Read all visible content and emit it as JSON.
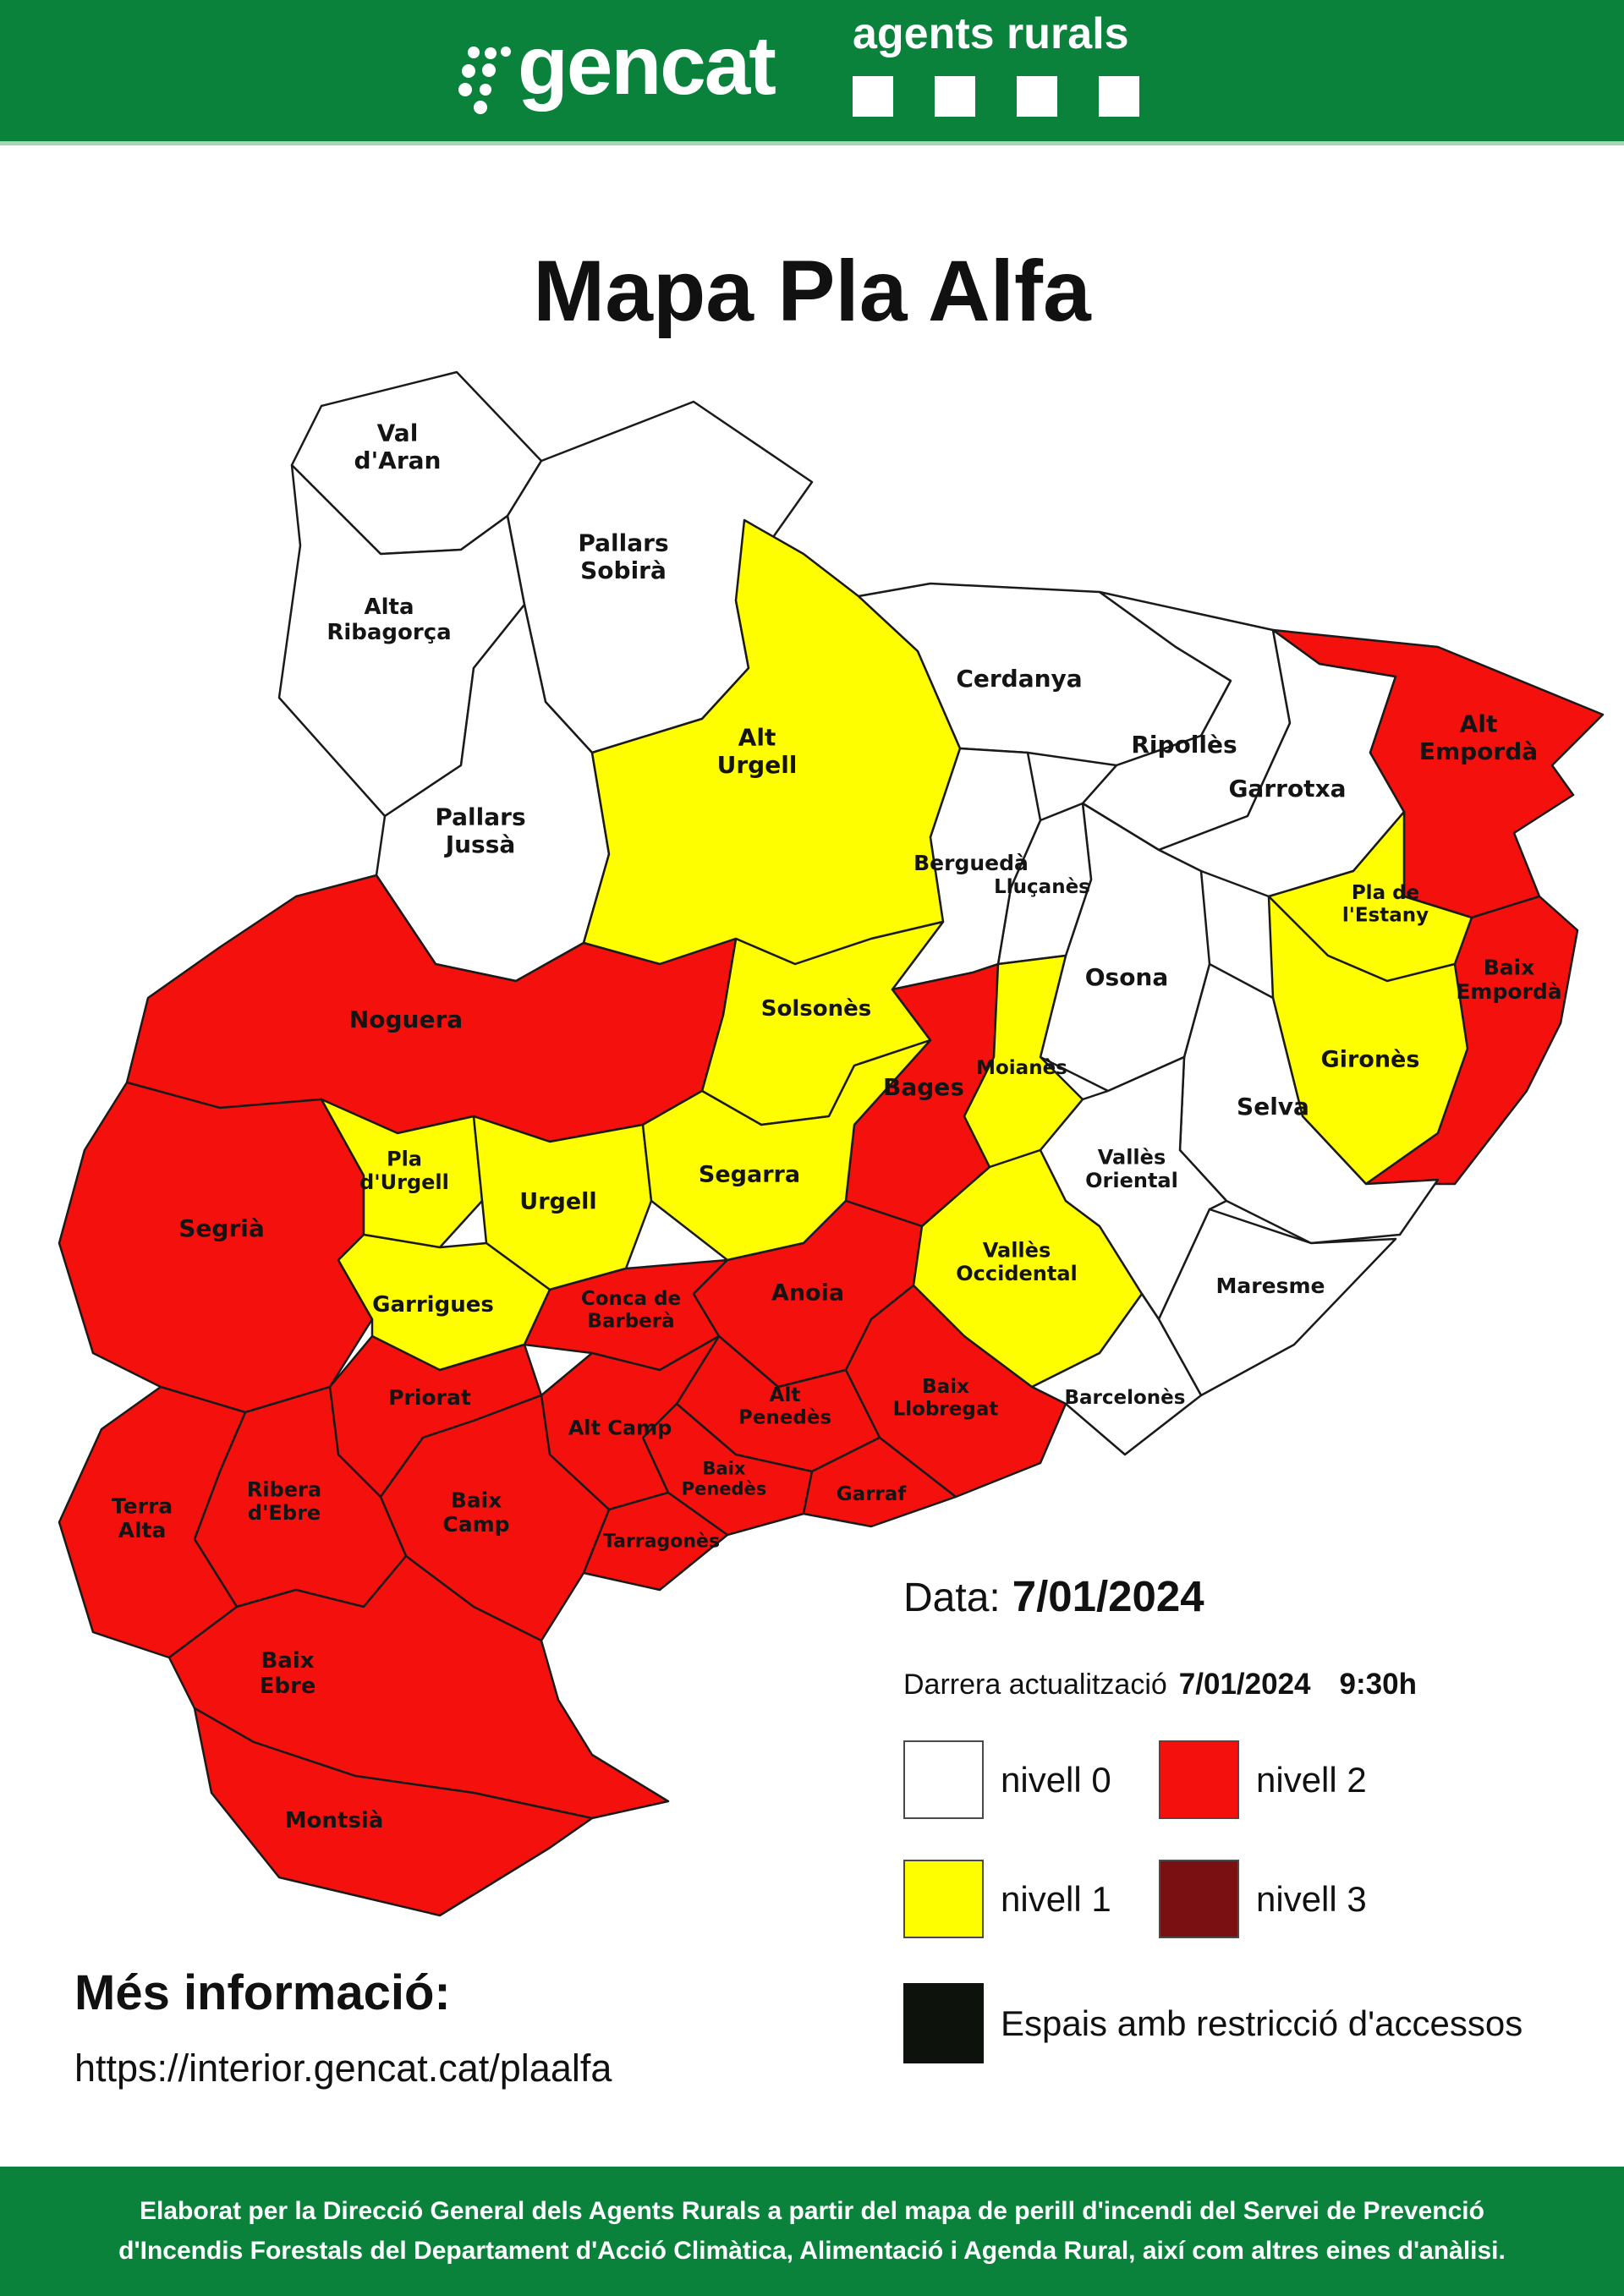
{
  "colors": {
    "brand_green": "#0A823C",
    "header_divider": "#A9D3B4",
    "map_border": "#1A1A1A",
    "label_text": "#141414"
  },
  "header": {
    "logo_text": "gencat",
    "brand_text": "agents rurals"
  },
  "title": "Mapa Pla Alfa",
  "info": {
    "date_label": "Data:",
    "date_value": "7/01/2024",
    "update_label": "Darrera actualització",
    "update_date": "7/01/2024",
    "update_time": "9:30h"
  },
  "legend": {
    "column_order": [
      0,
      2,
      1,
      3
    ],
    "levels": [
      {
        "value": 0,
        "label": "nivell 0",
        "color": "#FFFFFF"
      },
      {
        "value": 1,
        "label": "nivell 1",
        "color": "#FEFE00"
      },
      {
        "value": 2,
        "label": "nivell 2",
        "color": "#F3100D"
      },
      {
        "value": 3,
        "label": "nivell 3",
        "color": "#7B1013"
      }
    ],
    "restricted": {
      "label": "Espais amb restricció d'accessos",
      "color": "#0D120D"
    }
  },
  "map": {
    "regions": [
      {
        "id": "val-daran",
        "name": "Val\nd'Aran",
        "level": 0
      },
      {
        "id": "pallars-sobira",
        "name": "Pallars\nSobirà",
        "level": 0
      },
      {
        "id": "alta-ribagorca",
        "name": "Alta\nRibagorça",
        "level": 0
      },
      {
        "id": "pallars-jussa",
        "name": "Pallars\nJussà",
        "level": 0
      },
      {
        "id": "alt-urgell",
        "name": "Alt\nUrgell",
        "level": 1
      },
      {
        "id": "cerdanya",
        "name": "Cerdanya",
        "level": 0
      },
      {
        "id": "ripolles",
        "name": "Ripollès",
        "level": 0
      },
      {
        "id": "garrotxa",
        "name": "Garrotxa",
        "level": 0
      },
      {
        "id": "alt-emporda",
        "name": "Alt\nEmpordà",
        "level": 2
      },
      {
        "id": "pla-de-lestany",
        "name": "Pla de\nl'Estany",
        "level": 1
      },
      {
        "id": "girones",
        "name": "Gironès",
        "level": 1
      },
      {
        "id": "baix-emporda",
        "name": "Baix\nEmpordà",
        "level": 2
      },
      {
        "id": "selva",
        "name": "Selva",
        "level": 0
      },
      {
        "id": "osona",
        "name": "Osona",
        "level": 0
      },
      {
        "id": "llucanes",
        "name": "Lluçanès",
        "level": 0
      },
      {
        "id": "bergueda",
        "name": "Berguedà",
        "level": 0
      },
      {
        "id": "solsones",
        "name": "Solsonès",
        "level": 1
      },
      {
        "id": "bages",
        "name": "Bages",
        "level": 2
      },
      {
        "id": "moianes",
        "name": "Moianès",
        "level": 1
      },
      {
        "id": "noguera",
        "name": "Noguera",
        "level": 2
      },
      {
        "id": "segria",
        "name": "Segrià",
        "level": 2
      },
      {
        "id": "pla-durgell",
        "name": "Pla\nd'Urgell",
        "level": 1
      },
      {
        "id": "urgell",
        "name": "Urgell",
        "level": 1
      },
      {
        "id": "segarra",
        "name": "Segarra",
        "level": 1
      },
      {
        "id": "garrigues",
        "name": "Garrigues",
        "level": 1
      },
      {
        "id": "conca-de-barbera",
        "name": "Conca de\nBarberà",
        "level": 2
      },
      {
        "id": "anoia",
        "name": "Anoia",
        "level": 2
      },
      {
        "id": "valles-occidental",
        "name": "Vallès\nOccidental",
        "level": 1
      },
      {
        "id": "valles-oriental",
        "name": "Vallès\nOriental",
        "level": 0
      },
      {
        "id": "maresme",
        "name": "Maresme",
        "level": 0
      },
      {
        "id": "barcelones",
        "name": "Barcelonès",
        "level": 0
      },
      {
        "id": "baix-llobregat",
        "name": "Baix\nLlobregat",
        "level": 2
      },
      {
        "id": "alt-penedes",
        "name": "Alt\nPenedès",
        "level": 2
      },
      {
        "id": "baix-penedes",
        "name": "Baix\nPenedès",
        "level": 2
      },
      {
        "id": "garraf",
        "name": "Garraf",
        "level": 2
      },
      {
        "id": "alt-camp",
        "name": "Alt Camp",
        "level": 2
      },
      {
        "id": "tarragones",
        "name": "Tarragonès",
        "level": 2
      },
      {
        "id": "priorat",
        "name": "Priorat",
        "level": 2
      },
      {
        "id": "baix-camp",
        "name": "Baix\nCamp",
        "level": 2
      },
      {
        "id": "ribera-debre",
        "name": "Ribera\nd'Ebre",
        "level": 2
      },
      {
        "id": "terra-alta",
        "name": "Terra\nAlta",
        "level": 2
      },
      {
        "id": "baix-ebre",
        "name": "Baix\nEbre",
        "level": 2
      },
      {
        "id": "montsia",
        "name": "Montsià",
        "level": 2
      }
    ]
  },
  "more_info": {
    "heading": "Més informació:",
    "url": "https://interior.gencat.cat/plaalfa"
  },
  "footer": {
    "line1": "Elaborat per la Direcció General dels Agents Rurals a partir del mapa de perill d'incendi del Servei de Prevenció",
    "line2": "d'Incendis Forestals del Departament d'Acció Climàtica, Alimentació i Agenda Rural, així com altres eines d'anàlisi."
  }
}
